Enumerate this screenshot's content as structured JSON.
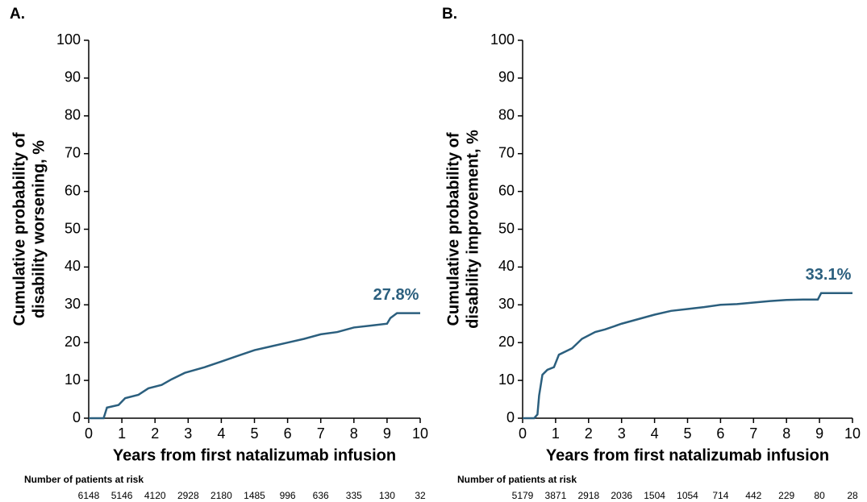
{
  "chart_data": [
    {
      "type": "line",
      "panel_label": "A.",
      "ylabel": [
        "Cumulative probability of",
        "disability worsening, %"
      ],
      "xlabel": "Years from first natalizumab infusion",
      "xlim": [
        0,
        10
      ],
      "xticks": [
        0,
        1,
        2,
        3,
        4,
        5,
        6,
        7,
        8,
        9,
        10
      ],
      "ylim": [
        0,
        100
      ],
      "yticks": [
        0,
        10,
        20,
        30,
        40,
        50,
        60,
        70,
        80,
        90,
        100
      ],
      "series": [
        {
          "color": "#2b5f7e",
          "x": [
            0,
            0.45,
            0.55,
            0.9,
            1.1,
            1.5,
            1.8,
            2.2,
            2.5,
            2.9,
            3.5,
            4,
            4.5,
            5,
            5.5,
            6,
            6.5,
            7,
            7.5,
            8,
            8.5,
            9,
            9.1,
            9.3,
            9.5,
            10
          ],
          "values": [
            0,
            0,
            2.8,
            3.5,
            5.3,
            6.2,
            7.9,
            8.8,
            10.3,
            12,
            13.5,
            15,
            16.5,
            18,
            19,
            20,
            21,
            22.2,
            22.8,
            24,
            24.5,
            25,
            26.5,
            27.8,
            27.8,
            27.8
          ]
        }
      ],
      "annotation": "27.8%",
      "risk_title": "Number of patients at risk",
      "at_risk": [
        6148,
        5146,
        4120,
        2928,
        2180,
        1485,
        996,
        636,
        335,
        130,
        32
      ]
    },
    {
      "type": "line",
      "panel_label": "B.",
      "ylabel": [
        "Cumulative probability of",
        "disability improvement, %"
      ],
      "xlabel": "Years from first natalizumab infusion",
      "xlim": [
        0,
        10
      ],
      "xticks": [
        0,
        1,
        2,
        3,
        4,
        5,
        6,
        7,
        8,
        9,
        10
      ],
      "ylim": [
        0,
        100
      ],
      "yticks": [
        0,
        10,
        20,
        30,
        40,
        50,
        60,
        70,
        80,
        90,
        100
      ],
      "series": [
        {
          "color": "#2b5f7e",
          "x": [
            0,
            0.35,
            0.45,
            0.5,
            0.6,
            0.75,
            0.95,
            1.1,
            1.5,
            1.8,
            2.2,
            2.5,
            3,
            3.5,
            4,
            4.5,
            5,
            5.5,
            6,
            6.5,
            7,
            7.5,
            8,
            8.5,
            8.95,
            9.05,
            9.5,
            10
          ],
          "values": [
            0,
            0,
            1,
            6,
            11.5,
            12.8,
            13.5,
            16.8,
            18.5,
            21,
            22.8,
            23.5,
            25,
            26.2,
            27.4,
            28.4,
            28.9,
            29.4,
            30,
            30.2,
            30.6,
            31,
            31.3,
            31.4,
            31.4,
            33.1,
            33.1,
            33.1
          ]
        }
      ],
      "annotation": "33.1%",
      "risk_title": "Number of patients at risk",
      "at_risk": [
        5179,
        3871,
        2918,
        2036,
        1504,
        1054,
        714,
        442,
        229,
        80,
        28
      ]
    }
  ]
}
